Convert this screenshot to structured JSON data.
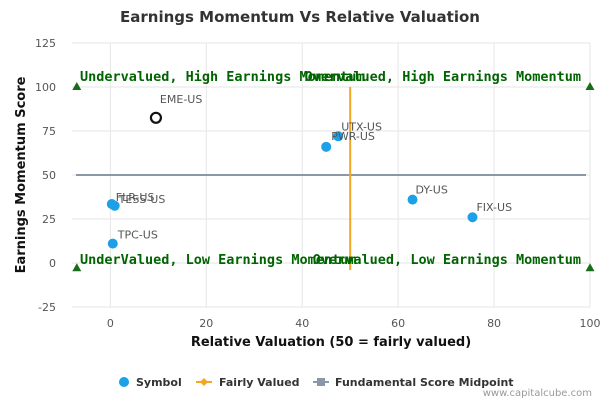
{
  "chart_data": {
    "type": "scatter",
    "title": "Earnings Momentum Vs Relative Valuation",
    "xlabel": "Relative Valuation (50 = fairly valued)",
    "ylabel": "Earnings Momentum Score",
    "xlim": [
      -8,
      100
    ],
    "ylim": [
      -25,
      125
    ],
    "xticks": [
      0,
      20,
      40,
      60,
      80,
      100
    ],
    "yticks": [
      -25,
      0,
      25,
      50,
      75,
      100,
      125
    ],
    "points": [
      {
        "label": "EME-US",
        "x": 9.5,
        "y": 82.5,
        "highlighted": true
      },
      {
        "label": "UTX-US",
        "x": 47.5,
        "y": 72
      },
      {
        "label": "PWR-US",
        "x": 45,
        "y": 66
      },
      {
        "label": "DY-US",
        "x": 63,
        "y": 36
      },
      {
        "label": "FIX-US",
        "x": 75.5,
        "y": 26
      },
      {
        "label": "FLR-US",
        "x": 0.3,
        "y": 33.5
      },
      {
        "label": "TESS-US",
        "x": 0.9,
        "y": 32.5
      },
      {
        "label": "TPC-US",
        "x": 0.5,
        "y": 11
      }
    ],
    "fairly_valued_x": 50,
    "fundamental_midpoint_y": 50,
    "quadrant_labels": {
      "top_left": "Undervalued, High Earnings Momentum",
      "top_right": "Overvalued, High Earnings Momentum",
      "bottom_left": "UnderValued, Low Earnings Momentum",
      "bottom_right": "Overvalued, Low Earnings Momentum"
    },
    "legend": [
      "Symbol",
      "Fairly Valued",
      "Fundamental Score Midpoint"
    ],
    "legend_position": "bottom",
    "colors": {
      "point": "#1ca0e8",
      "highlight_stroke": "#111111",
      "fairly_valued": "#f5a623",
      "midpoint": "#8a97a6",
      "quadrant_text": "#006400",
      "marker": "#1a6b1a",
      "grid": "#e6e6e6"
    }
  },
  "credit": "www.capitalcube.com"
}
